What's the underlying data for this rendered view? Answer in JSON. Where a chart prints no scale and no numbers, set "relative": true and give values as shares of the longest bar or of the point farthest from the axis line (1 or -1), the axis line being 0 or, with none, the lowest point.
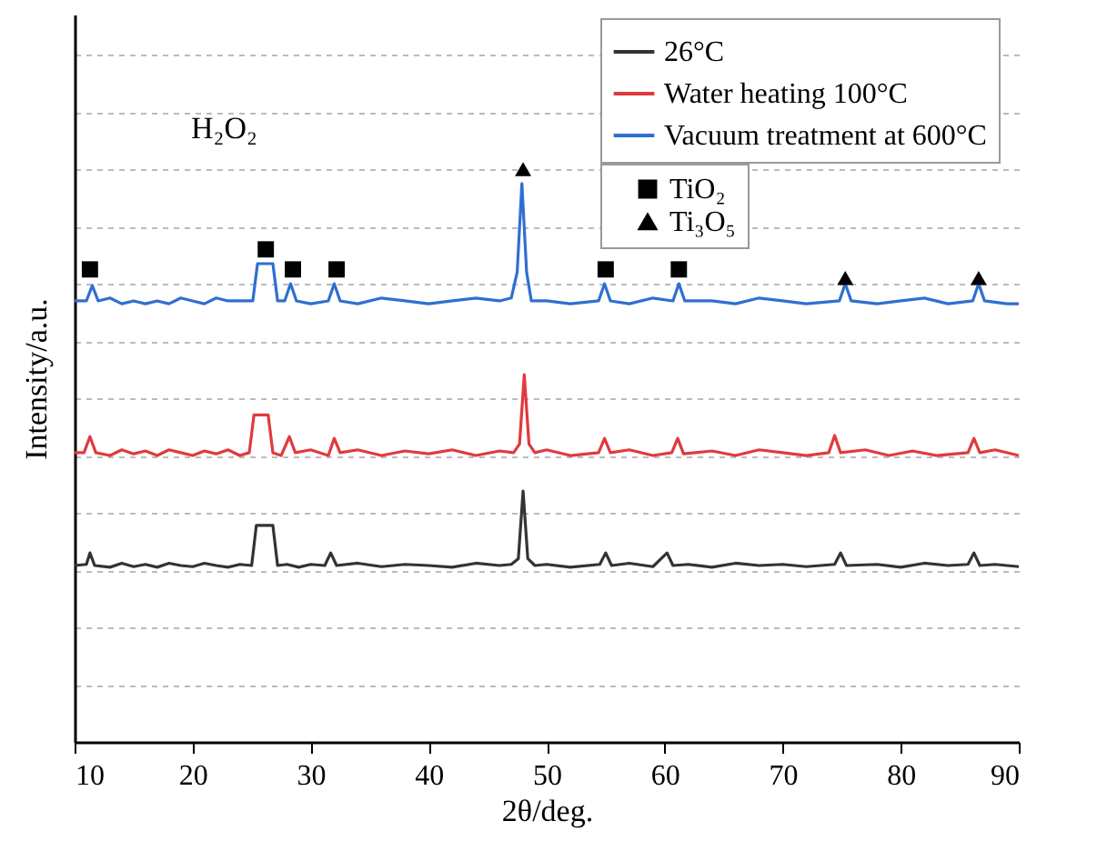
{
  "chart_data": {
    "type": "line",
    "relative": true,
    "xlabel": "2θ/deg.",
    "ylabel": "Intensity/a.u.",
    "xlim": [
      10,
      90
    ],
    "xticks": [
      10,
      20,
      30,
      40,
      50,
      60,
      70,
      80,
      90
    ],
    "grid": "y",
    "legend": "top right",
    "annotations": [
      "H₂O₂"
    ],
    "series": [
      {
        "name": "26°C",
        "color": "#333333",
        "x": [
          10,
          11,
          11.3,
          11.7,
          13,
          14,
          15,
          16,
          17,
          18,
          19,
          20,
          21,
          22,
          23,
          24,
          25,
          25.4,
          26.8,
          27.2,
          28,
          29,
          30,
          31.2,
          31.7,
          32.2,
          34,
          36,
          38,
          40,
          42,
          44,
          46,
          47,
          47.6,
          48,
          48.4,
          49,
          50,
          52,
          54.5,
          55,
          55.5,
          57,
          59,
          60.2,
          60.7,
          62,
          64,
          66,
          68,
          70,
          72,
          74.4,
          74.9,
          75.4,
          78,
          80,
          82,
          84,
          85.7,
          86.2,
          86.7,
          88,
          90
        ],
        "values": [
          0.308,
          0.31,
          0.33,
          0.308,
          0.305,
          0.312,
          0.306,
          0.31,
          0.305,
          0.312,
          0.308,
          0.306,
          0.312,
          0.308,
          0.305,
          0.31,
          0.308,
          0.378,
          0.378,
          0.308,
          0.31,
          0.305,
          0.31,
          0.308,
          0.33,
          0.308,
          0.312,
          0.306,
          0.31,
          0.308,
          0.305,
          0.312,
          0.308,
          0.31,
          0.32,
          0.438,
          0.32,
          0.308,
          0.31,
          0.305,
          0.31,
          0.33,
          0.308,
          0.312,
          0.306,
          0.33,
          0.308,
          0.31,
          0.305,
          0.312,
          0.308,
          0.31,
          0.306,
          0.31,
          0.33,
          0.308,
          0.31,
          0.305,
          0.312,
          0.308,
          0.31,
          0.33,
          0.308,
          0.31,
          0.306
        ]
      },
      {
        "name": "Water heating 100°C",
        "color": "#e03a3e",
        "x": [
          10,
          10.8,
          11.3,
          11.8,
          13,
          14,
          15,
          16,
          17,
          18,
          19,
          20,
          21,
          22,
          23,
          24,
          24.8,
          25.2,
          26.4,
          26.8,
          27.5,
          28.2,
          28.7,
          30,
          31.5,
          32,
          32.5,
          34,
          36,
          38,
          40,
          42,
          44,
          46,
          47.2,
          47.7,
          48.1,
          48.5,
          49,
          50,
          52,
          54.4,
          54.9,
          55.4,
          57,
          59,
          60.6,
          61.1,
          61.6,
          64,
          66,
          68,
          70,
          72,
          73.9,
          74.4,
          74.9,
          77,
          79,
          81,
          83,
          85.7,
          86.2,
          86.7,
          88,
          90
        ],
        "values": [
          0.505,
          0.505,
          0.533,
          0.505,
          0.5,
          0.51,
          0.503,
          0.508,
          0.5,
          0.51,
          0.505,
          0.5,
          0.508,
          0.503,
          0.51,
          0.5,
          0.505,
          0.571,
          0.571,
          0.505,
          0.5,
          0.533,
          0.505,
          0.51,
          0.5,
          0.53,
          0.505,
          0.51,
          0.5,
          0.508,
          0.503,
          0.51,
          0.5,
          0.508,
          0.505,
          0.52,
          0.641,
          0.52,
          0.505,
          0.51,
          0.5,
          0.505,
          0.53,
          0.505,
          0.51,
          0.5,
          0.505,
          0.53,
          0.503,
          0.508,
          0.5,
          0.51,
          0.505,
          0.5,
          0.505,
          0.535,
          0.505,
          0.51,
          0.5,
          0.508,
          0.5,
          0.505,
          0.53,
          0.505,
          0.51,
          0.5
        ]
      },
      {
        "name": "Vacuum treatment at 600°C",
        "color": "#2f6fd0",
        "x": [
          10,
          11,
          11.5,
          12,
          13,
          14,
          15,
          16,
          17,
          18,
          19,
          20,
          21,
          22,
          23,
          24,
          25.1,
          25.5,
          26.8,
          27.2,
          27.8,
          28.3,
          28.8,
          30,
          31.5,
          32,
          32.5,
          34,
          36,
          38,
          40,
          42,
          44,
          46,
          47,
          47.5,
          47.9,
          48.3,
          48.7,
          50,
          52,
          54.4,
          54.9,
          55.4,
          57,
          59,
          60.7,
          61.2,
          61.7,
          64,
          66,
          68,
          70,
          72,
          74.8,
          75.3,
          75.8,
          78,
          80,
          82,
          84,
          86.1,
          86.6,
          87.1,
          89,
          90
        ],
        "values": [
          0.77,
          0.77,
          0.797,
          0.77,
          0.775,
          0.765,
          0.77,
          0.765,
          0.77,
          0.765,
          0.775,
          0.77,
          0.765,
          0.775,
          0.77,
          0.77,
          0.77,
          0.835,
          0.835,
          0.77,
          0.77,
          0.8,
          0.77,
          0.765,
          0.77,
          0.8,
          0.77,
          0.765,
          0.775,
          0.77,
          0.765,
          0.77,
          0.775,
          0.77,
          0.775,
          0.82,
          0.975,
          0.82,
          0.77,
          0.77,
          0.765,
          0.77,
          0.8,
          0.77,
          0.765,
          0.775,
          0.77,
          0.8,
          0.77,
          0.77,
          0.765,
          0.775,
          0.77,
          0.765,
          0.77,
          0.8,
          0.77,
          0.765,
          0.77,
          0.775,
          0.765,
          0.77,
          0.8,
          0.77,
          0.765,
          0.765
        ]
      },
      {
        "name": "TiO₂",
        "type": "scatter",
        "marker": "square",
        "color": "#000000",
        "x": [
          11.3,
          26.2,
          28.5,
          32.2,
          55,
          61.2
        ],
        "values": [
          0.825,
          0.86,
          0.825,
          0.825,
          0.825,
          0.825
        ]
      },
      {
        "name": "Ti₃O₅",
        "type": "scatter",
        "marker": "triangle",
        "color": "#000000",
        "x": [
          48,
          75.3,
          86.6
        ],
        "values": [
          1,
          0.81,
          0.81
        ]
      }
    ]
  }
}
